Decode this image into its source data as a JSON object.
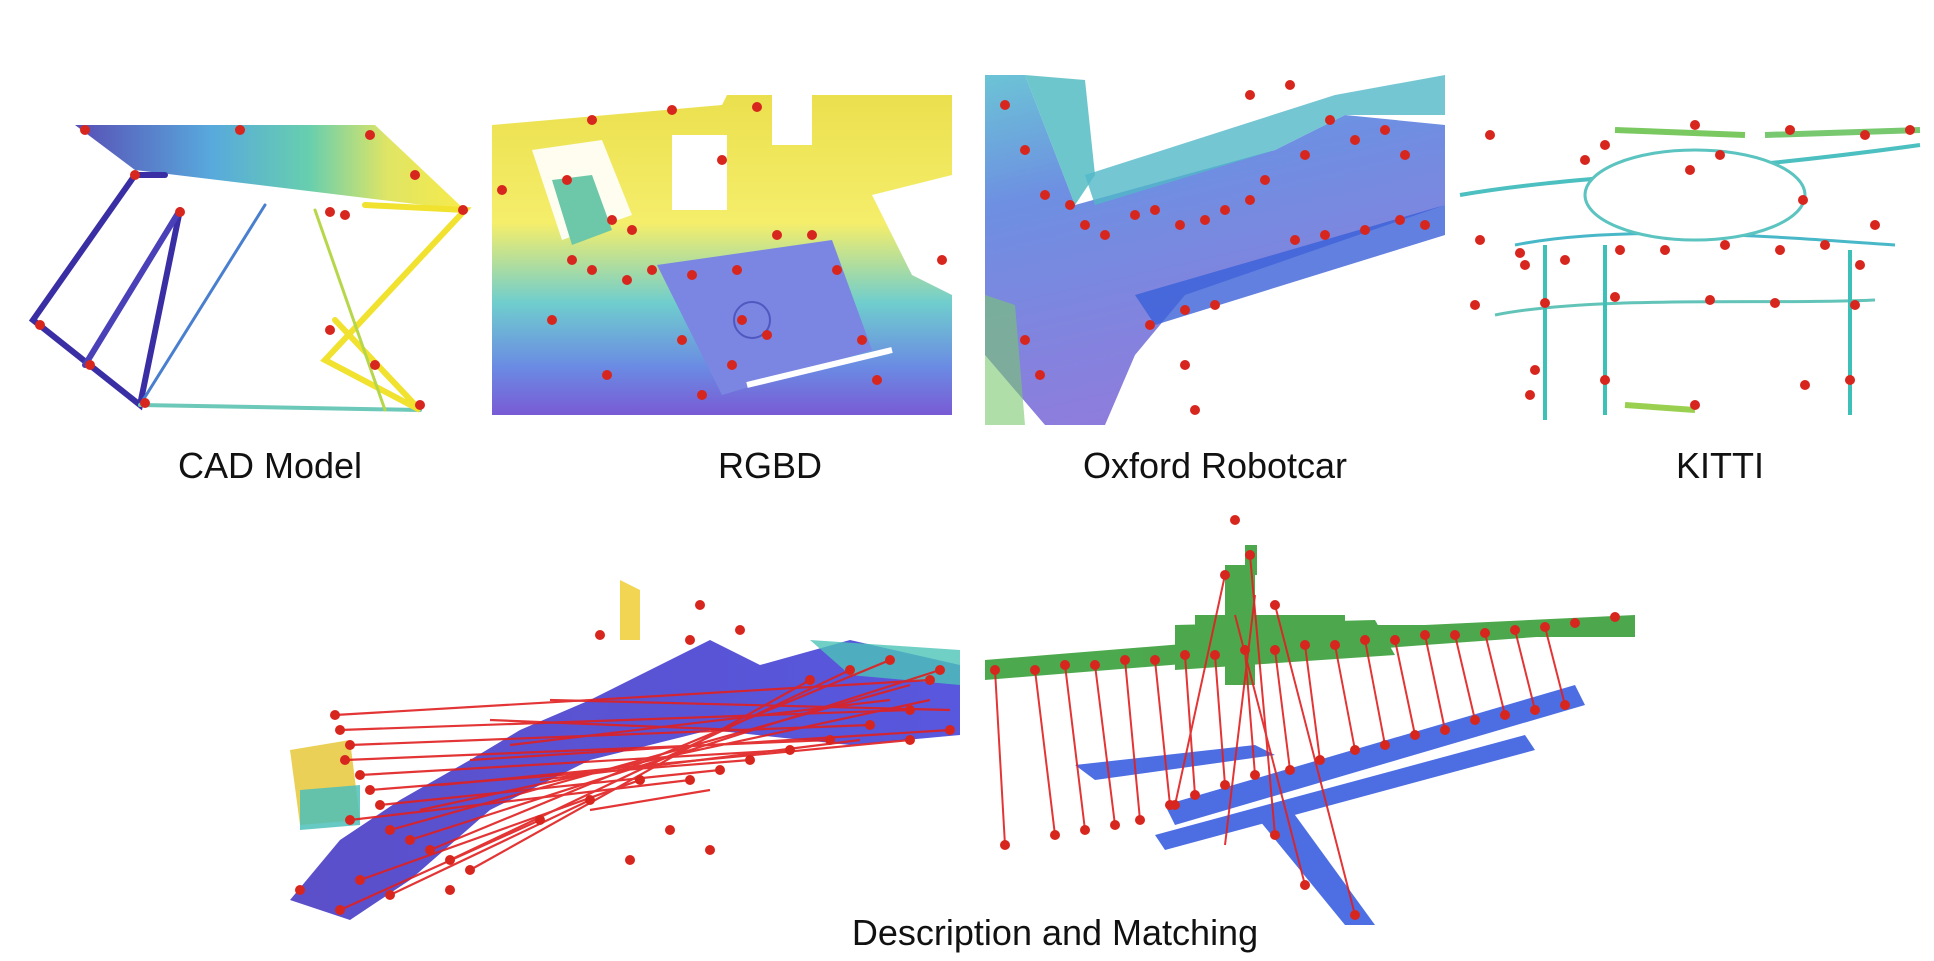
{
  "figure": {
    "panels": [
      {
        "id": "cad",
        "caption": "CAD Model"
      },
      {
        "id": "rgbd",
        "caption": "RGBD"
      },
      {
        "id": "oxford",
        "caption": "Oxford Robotcar"
      },
      {
        "id": "kitti",
        "caption": "KITTI"
      }
    ],
    "bottom_caption": "Description and Matching"
  },
  "colors": {
    "keypoint": "#d7261e",
    "match_line": "#e02020",
    "cloud_green": "#2e9a2e",
    "cloud_blue": "#3a5fe0"
  }
}
